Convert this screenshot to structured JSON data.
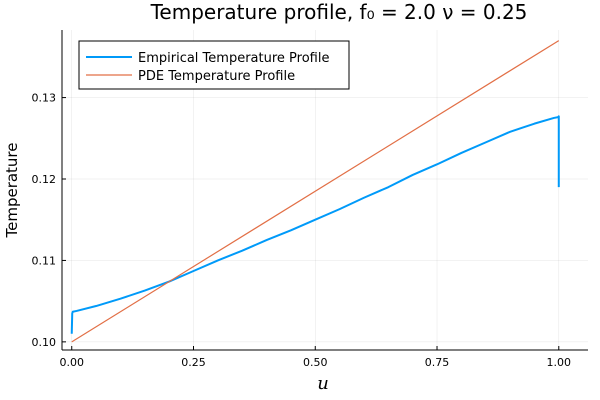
{
  "chart_data": {
    "type": "line",
    "title": "Temperature profile, f₀ = 2.0 ν = 0.25",
    "xlabel": "u",
    "ylabel": "Temperature",
    "xlim": [
      -0.02,
      1.06
    ],
    "ylim": [
      0.099,
      0.1383
    ],
    "xticks": [
      0.0,
      0.25,
      0.5,
      0.75,
      1.0
    ],
    "xtick_labels": [
      "0.00",
      "0.25",
      "0.50",
      "0.75",
      "1.00"
    ],
    "yticks": [
      0.1,
      0.11,
      0.12,
      0.13
    ],
    "ytick_labels": [
      "0.10",
      "0.11",
      "0.12",
      "0.13"
    ],
    "grid": true,
    "legend_position": "top-left",
    "series": [
      {
        "name": "Empirical Temperature Profile",
        "color": "#009af9",
        "x": [
          0.0,
          0.001,
          0.002,
          0.01,
          0.05,
          0.1,
          0.15,
          0.2,
          0.25,
          0.3,
          0.35,
          0.4,
          0.45,
          0.5,
          0.55,
          0.6,
          0.65,
          0.7,
          0.75,
          0.8,
          0.85,
          0.9,
          0.95,
          0.99,
          0.999,
          1.0,
          1.0
        ],
        "y": [
          0.101,
          0.1035,
          0.1037,
          0.1038,
          0.1044,
          0.1053,
          0.1063,
          0.1074,
          0.1087,
          0.11,
          0.1112,
          0.1125,
          0.1137,
          0.115,
          0.1163,
          0.1177,
          0.119,
          0.1205,
          0.1218,
          0.1232,
          0.1245,
          0.1258,
          0.1268,
          0.1275,
          0.1276,
          0.1277,
          0.119
        ]
      },
      {
        "name": "PDE Temperature Profile",
        "color": "#e26f46",
        "x": [
          0.0,
          1.0
        ],
        "y": [
          0.1,
          0.137
        ]
      }
    ]
  }
}
